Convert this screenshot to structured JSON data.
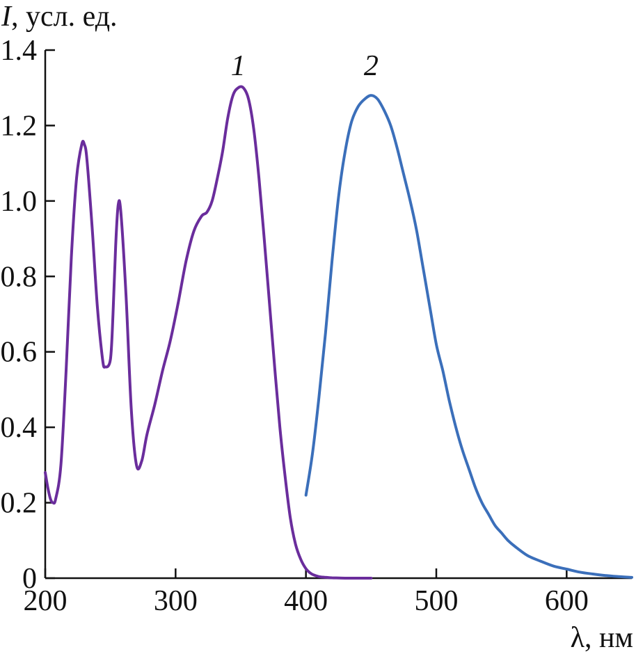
{
  "chart_data": {
    "type": "line",
    "ylabel_symbol": "I",
    "ylabel_units": ", усл. ед.",
    "xlabel_symbol": "λ",
    "xlabel_units": ", нм",
    "xlim": [
      200,
      650
    ],
    "ylim": [
      0,
      1.4
    ],
    "grid": false,
    "xticks": [
      {
        "value": 200,
        "label": "200"
      },
      {
        "value": 300,
        "label": "300"
      },
      {
        "value": 400,
        "label": "400"
      },
      {
        "value": 500,
        "label": "500"
      },
      {
        "value": 600,
        "label": "600"
      }
    ],
    "yticks": [
      {
        "value": 0,
        "label": "0"
      },
      {
        "value": 0.2,
        "label": "0.2"
      },
      {
        "value": 0.4,
        "label": "0.4"
      },
      {
        "value": 0.6,
        "label": "0.6"
      },
      {
        "value": 0.8,
        "label": "0.8"
      },
      {
        "value": 1.0,
        "label": "1.0"
      },
      {
        "value": 1.2,
        "label": "1.2"
      },
      {
        "value": 1.4,
        "label": "1.4"
      }
    ],
    "series": [
      {
        "label": "1",
        "color": "#6a2d9c",
        "label_at": [
          348,
          1.33
        ],
        "x": [
          200,
          202,
          204,
          206,
          208,
          212,
          216,
          220,
          224,
          228,
          230,
          232,
          236,
          240,
          244,
          246,
          250,
          252,
          254,
          256,
          258,
          262,
          266,
          270,
          274,
          278,
          284,
          290,
          296,
          302,
          308,
          314,
          320,
          324,
          328,
          332,
          336,
          340,
          344,
          348,
          352,
          356,
          360,
          364,
          368,
          372,
          376,
          380,
          384,
          388,
          392,
          396,
          400,
          404,
          408,
          412,
          416,
          420,
          430,
          440,
          450
        ],
        "y": [
          0.28,
          0.24,
          0.21,
          0.2,
          0.21,
          0.3,
          0.55,
          0.85,
          1.06,
          1.15,
          1.15,
          1.11,
          0.93,
          0.72,
          0.58,
          0.56,
          0.58,
          0.7,
          0.88,
          0.99,
          0.97,
          0.75,
          0.45,
          0.3,
          0.31,
          0.38,
          0.46,
          0.55,
          0.63,
          0.73,
          0.84,
          0.92,
          0.96,
          0.97,
          1.0,
          1.06,
          1.13,
          1.22,
          1.28,
          1.3,
          1.3,
          1.27,
          1.19,
          1.06,
          0.9,
          0.73,
          0.56,
          0.4,
          0.27,
          0.16,
          0.09,
          0.05,
          0.025,
          0.012,
          0.006,
          0.003,
          0.002,
          0.001,
          0.0,
          0.0,
          0.0
        ]
      },
      {
        "label": "2",
        "color": "#3b6fba",
        "label_at": [
          450,
          1.33
        ],
        "x": [
          400,
          405,
          410,
          415,
          420,
          425,
          430,
          435,
          440,
          445,
          450,
          455,
          460,
          465,
          470,
          475,
          480,
          485,
          490,
          495,
          500,
          505,
          510,
          515,
          520,
          525,
          530,
          535,
          540,
          545,
          550,
          555,
          560,
          570,
          580,
          590,
          600,
          610,
          620,
          630,
          640,
          650
        ],
        "y": [
          0.22,
          0.33,
          0.48,
          0.65,
          0.84,
          1.01,
          1.13,
          1.21,
          1.25,
          1.27,
          1.28,
          1.27,
          1.24,
          1.2,
          1.14,
          1.07,
          1.0,
          0.92,
          0.82,
          0.72,
          0.62,
          0.55,
          0.47,
          0.4,
          0.34,
          0.29,
          0.24,
          0.2,
          0.17,
          0.14,
          0.12,
          0.1,
          0.085,
          0.06,
          0.045,
          0.032,
          0.024,
          0.016,
          0.011,
          0.007,
          0.004,
          0.002
        ]
      }
    ]
  }
}
